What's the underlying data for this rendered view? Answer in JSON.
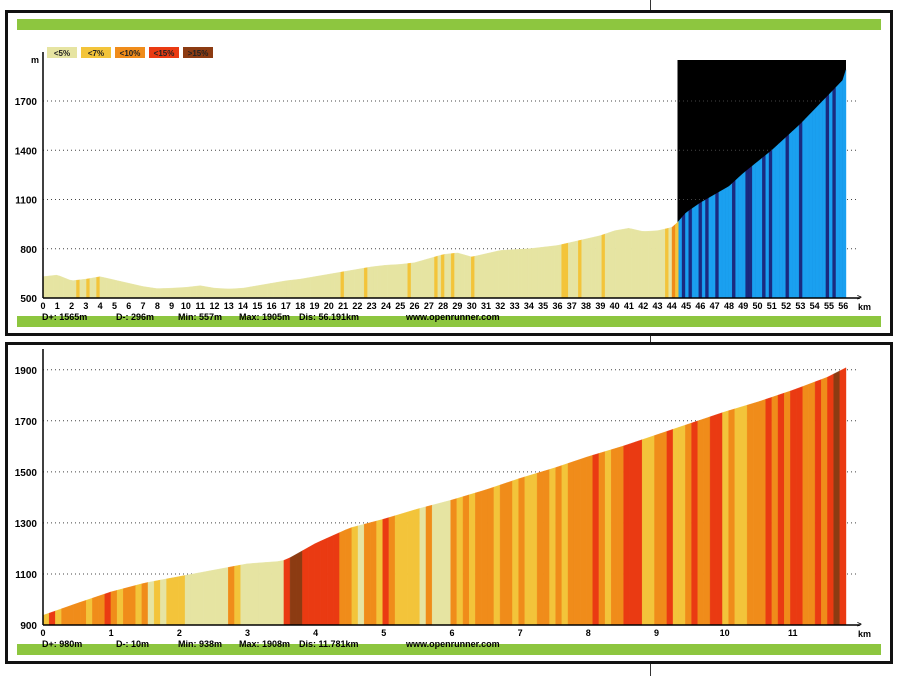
{
  "legend": [
    {
      "label": "<5%",
      "color": "#e6e4a2"
    },
    {
      "label": "<7%",
      "color": "#f3c43a"
    },
    {
      "label": "<10%",
      "color": "#f08c1a"
    },
    {
      "label": "<15%",
      "color": "#ea3a12"
    },
    {
      "label": ">15%",
      "color": "#8c3b12"
    }
  ],
  "colors": {
    "frame_green": "#8dc63f",
    "axis": "#000000",
    "grid": "#444444",
    "highlight_bg": "#000000",
    "highlight_dark": "#1a2a80",
    "highlight_light": "#1aa0f0"
  },
  "chart_data": [
    {
      "type": "area",
      "title": "",
      "ylabel": "m",
      "xlabel": "km",
      "ylim": [
        500,
        1950
      ],
      "xlim": [
        0,
        56.191
      ],
      "yticks": [
        500,
        800,
        1100,
        1400,
        1700
      ],
      "xticks": [
        0,
        1,
        2,
        3,
        4,
        5,
        6,
        7,
        8,
        9,
        10,
        11,
        12,
        13,
        14,
        15,
        16,
        17,
        18,
        19,
        20,
        21,
        22,
        23,
        24,
        25,
        26,
        27,
        28,
        29,
        30,
        31,
        32,
        33,
        34,
        35,
        36,
        37,
        38,
        39,
        40,
        41,
        42,
        43,
        44,
        45,
        46,
        47,
        48,
        49,
        50,
        51,
        52,
        53,
        54,
        55,
        56
      ],
      "grid": true,
      "highlight_range_km": [
        44.4,
        56.191
      ],
      "x": [
        0,
        1,
        2,
        3,
        4,
        5,
        6,
        7,
        8,
        9,
        10,
        11,
        12,
        13,
        14,
        15,
        16,
        17,
        18,
        19,
        20,
        21,
        22,
        23,
        24,
        25,
        26,
        27,
        28,
        29,
        30,
        31,
        32,
        33,
        34,
        35,
        36,
        37,
        38,
        39,
        40,
        41,
        42,
        43,
        44,
        44.4,
        45,
        46,
        47,
        48,
        49,
        50,
        51,
        52,
        53,
        54,
        55,
        56,
        56.191
      ],
      "elevation": [
        630,
        640,
        605,
        615,
        630,
        610,
        590,
        570,
        557,
        560,
        565,
        575,
        560,
        555,
        560,
        575,
        590,
        605,
        615,
        630,
        645,
        660,
        675,
        690,
        700,
        705,
        715,
        740,
        765,
        775,
        750,
        770,
        790,
        795,
        800,
        810,
        820,
        840,
        860,
        880,
        910,
        925,
        905,
        910,
        930,
        960,
        1020,
        1080,
        1130,
        1180,
        1260,
        1330,
        1400,
        1480,
        1560,
        1650,
        1740,
        1830,
        1890
      ],
      "stats": {
        "dplus": "D+: 1565m",
        "dminus": "D-: 296m",
        "min": "Min: 557m",
        "max": "Max: 1905m",
        "dist": "Dis: 56.191km"
      },
      "source": "www.openrunner.com"
    },
    {
      "type": "area",
      "title": "",
      "xlabel": "km",
      "ylim": [
        900,
        1950
      ],
      "xlim": [
        0,
        11.781
      ],
      "yticks": [
        900,
        1100,
        1300,
        1500,
        1700,
        1900
      ],
      "xticks": [
        0,
        1,
        2,
        3,
        4,
        5,
        6,
        7,
        8,
        9,
        10,
        11
      ],
      "grid": true,
      "x": [
        0,
        0.5,
        1,
        1.5,
        2,
        2.5,
        3,
        3.5,
        3.6,
        4,
        4.5,
        5,
        5.5,
        6,
        6.5,
        7,
        7.5,
        8,
        8.5,
        9,
        9.5,
        10,
        10.5,
        11,
        11.5,
        11.781
      ],
      "elevation": [
        938,
        985,
        1030,
        1065,
        1090,
        1115,
        1140,
        1150,
        1160,
        1220,
        1280,
        1315,
        1355,
        1390,
        1430,
        1475,
        1515,
        1560,
        1600,
        1645,
        1690,
        1735,
        1775,
        1820,
        1870,
        1908
      ],
      "stats": {
        "dplus": "D+: 980m",
        "dminus": "D-: 10m",
        "min": "Min: 938m",
        "max": "Max: 1908m",
        "dist": "Dis: 11.781km"
      },
      "source": "www.openrunner.com"
    }
  ]
}
